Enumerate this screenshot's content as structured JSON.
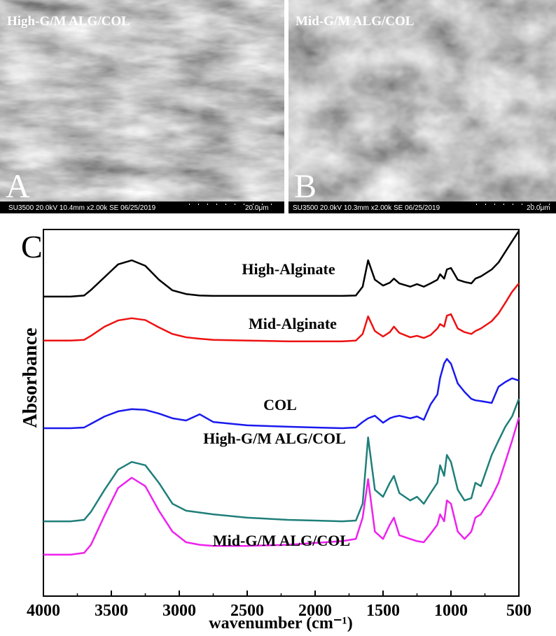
{
  "panels": [
    {
      "title": "High-G/M ALG/COL",
      "label": "A",
      "info": "SU3500 20.0kV 10.4mm x2.00k SE 06/25/2019",
      "scale": "20.0μm"
    },
    {
      "title": "Mid-G/M ALG/COL",
      "label": "B",
      "info": "SU3500 20.0kV 10.3mm x2.00k SE 06/25/2019",
      "scale": "20.0μm"
    }
  ],
  "chart_data": {
    "type": "line",
    "panel_label": "C",
    "x_label": "wavenumber (cm⁻¹)",
    "y_label": "Absorbance",
    "xlim": [
      4000,
      500
    ],
    "xticks": [
      4000,
      3500,
      3000,
      2500,
      2000,
      1500,
      1000,
      500
    ],
    "ylim": [
      0,
      100
    ],
    "x": [
      4000,
      3800,
      3700,
      3650,
      3550,
      3450,
      3350,
      3250,
      3150,
      3050,
      2950,
      2850,
      2750,
      2500,
      2200,
      2000,
      1800,
      1700,
      1650,
      1610,
      1560,
      1500,
      1450,
      1420,
      1380,
      1300,
      1250,
      1200,
      1150,
      1100,
      1080,
      1050,
      1030,
      1000,
      950,
      900,
      850,
      820,
      780,
      700,
      650,
      600,
      550,
      500
    ],
    "series": [
      {
        "name": "High-Alginate",
        "color": "#000000",
        "values": [
          81.7,
          81.7,
          82.0,
          83.5,
          87,
          90.5,
          91.6,
          90.1,
          86.3,
          83.4,
          82.4,
          82.0,
          81.9,
          81.9,
          81.9,
          81.9,
          81.9,
          82.0,
          84.4,
          91.6,
          86.3,
          84.7,
          85.5,
          86.6,
          85.3,
          84.4,
          85.1,
          84.4,
          85.3,
          86.3,
          87.8,
          86.6,
          89.1,
          89.5,
          86.3,
          85.7,
          85.3,
          86.6,
          87.2,
          89.1,
          91.0,
          93.9,
          96.8,
          99.6
        ]
      },
      {
        "name": "Mid-Alginate",
        "color": "#ee1111",
        "values": [
          69.7,
          69.7,
          69.9,
          71,
          73.5,
          75.2,
          75.8,
          75.3,
          73.3,
          71.5,
          70.6,
          70.2,
          69.9,
          69.7,
          69.5,
          69.5,
          69.5,
          69.7,
          71.5,
          76.3,
          72.3,
          70.8,
          72.0,
          73.5,
          71.8,
          70.6,
          71.0,
          70.4,
          71.2,
          73.0,
          74.2,
          73.5,
          76.5,
          76.9,
          73.0,
          72.0,
          71.5,
          72.3,
          73.0,
          75.0,
          77.1,
          80.0,
          83.0,
          85.3
        ]
      },
      {
        "name": "COL",
        "color": "#1a1aee",
        "values": [
          45.8,
          45.8,
          46.0,
          47.0,
          49.0,
          50.4,
          51.0,
          50.8,
          49.8,
          48.5,
          47.9,
          49.6,
          47.5,
          46.6,
          46.2,
          46.0,
          45.8,
          46.0,
          47.5,
          48.5,
          49.2,
          47.3,
          48.5,
          48.9,
          49.2,
          48.5,
          49.0,
          48.1,
          52.3,
          55.0,
          59.5,
          63.5,
          64.7,
          63.4,
          58.0,
          55.7,
          53.8,
          53.4,
          53.2,
          52.7,
          57.1,
          58.4,
          59.4,
          58.8
        ]
      },
      {
        "name": "High-G/M ALG/COL",
        "color": "#1f7f7a",
        "values": [
          20.4,
          20.4,
          20.8,
          23,
          29,
          34.5,
          36.6,
          35.7,
          30.9,
          25.2,
          23.3,
          22.8,
          22.3,
          21.4,
          20.8,
          20.6,
          20.4,
          20.6,
          25.2,
          43.3,
          29.0,
          27.1,
          30.9,
          32.8,
          28.1,
          26.1,
          27.1,
          25.2,
          28.1,
          30.9,
          35.7,
          32.8,
          38.5,
          36.6,
          29.0,
          26.1,
          26.7,
          30.9,
          30.0,
          38.5,
          42.4,
          46.2,
          49.0,
          53.8
        ]
      },
      {
        "name": "Mid-G/M ALG/COL",
        "color": "#ee22ee",
        "values": [
          11.3,
          11.3,
          11.8,
          14,
          22,
          29.5,
          32.3,
          30.0,
          23.3,
          17.6,
          14.7,
          14.0,
          13.7,
          13.7,
          14.0,
          14.5,
          15.0,
          15.6,
          21.4,
          31.9,
          17.6,
          15.6,
          19.5,
          21.4,
          16.6,
          15.6,
          15.0,
          14.7,
          17.0,
          19.5,
          22.3,
          20.4,
          26.1,
          25.2,
          17.6,
          15.6,
          17.6,
          21.4,
          22.3,
          27.1,
          30.9,
          36.6,
          42.4,
          48.7
        ]
      }
    ]
  }
}
